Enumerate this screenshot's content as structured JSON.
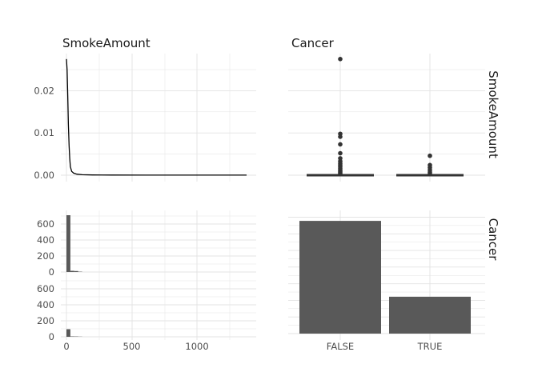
{
  "chart_data": {
    "type": "pairs",
    "col_strips": [
      "SmokeAmount",
      "Cancer"
    ],
    "row_strips": [
      "SmokeAmount",
      "Cancer"
    ],
    "colors": {
      "mark": "#595959",
      "line": "#000000",
      "grid": "#e3e3e3",
      "text": "#4d4d4d"
    },
    "grid": true,
    "panels": {
      "density": {
        "type": "line",
        "xlim": [
          0,
          1380
        ],
        "ylim": [
          -0.0005,
          0.028
        ],
        "yticks": [
          "0.00",
          "0.01",
          "0.02"
        ],
        "points": [
          [
            0,
            0.0275
          ],
          [
            5,
            0.025
          ],
          [
            10,
            0.019
          ],
          [
            15,
            0.012
          ],
          [
            20,
            0.007
          ],
          [
            25,
            0.004
          ],
          [
            30,
            0.002
          ],
          [
            40,
            0.0009
          ],
          [
            55,
            0.0005
          ],
          [
            80,
            0.00025
          ],
          [
            120,
            0.00012
          ],
          [
            200,
            6e-05
          ],
          [
            350,
            3e-05
          ],
          [
            600,
            2e-05
          ],
          [
            900,
            1e-05
          ],
          [
            1380,
            1e-05
          ]
        ]
      },
      "boxplot": {
        "type": "box",
        "categories": [
          "FALSE",
          "TRUE"
        ],
        "ylim": [
          -0.0005,
          0.028
        ],
        "medians": [
          0.0,
          0.0
        ],
        "outliers": [
          [
            0.0275,
            0.0098,
            0.0091,
            0.0073,
            0.0052,
            0.004,
            0.0033,
            0.0028,
            0.0024,
            0.002,
            0.0016,
            0.0012,
            0.0009,
            0.0006,
            0.0003
          ],
          [
            0.0046,
            0.0024,
            0.0018,
            0.0012,
            0.0007,
            0.0003
          ]
        ]
      },
      "histogram": {
        "type": "bar",
        "bin_width": 30,
        "xlim": [
          0,
          1380
        ],
        "xticks": [
          "0",
          "500",
          "1000"
        ],
        "ylim": [
          0,
          720
        ],
        "yticks": [
          "0",
          "200",
          "400",
          "600"
        ],
        "facets": [
          {
            "category": "FALSE",
            "bins": [
              [
                0,
                710
              ],
              [
                30,
                15
              ],
              [
                60,
                12
              ],
              [
                90,
                4
              ]
            ]
          },
          {
            "category": "TRUE",
            "bins": [
              [
                0,
                95
              ],
              [
                30,
                5
              ],
              [
                60,
                4
              ],
              [
                90,
                2
              ]
            ]
          }
        ]
      },
      "counts": {
        "type": "bar",
        "categories": [
          "FALSE",
          "TRUE"
        ],
        "values": [
          678,
          222
        ],
        "ylim": [
          0,
          700
        ]
      }
    }
  }
}
